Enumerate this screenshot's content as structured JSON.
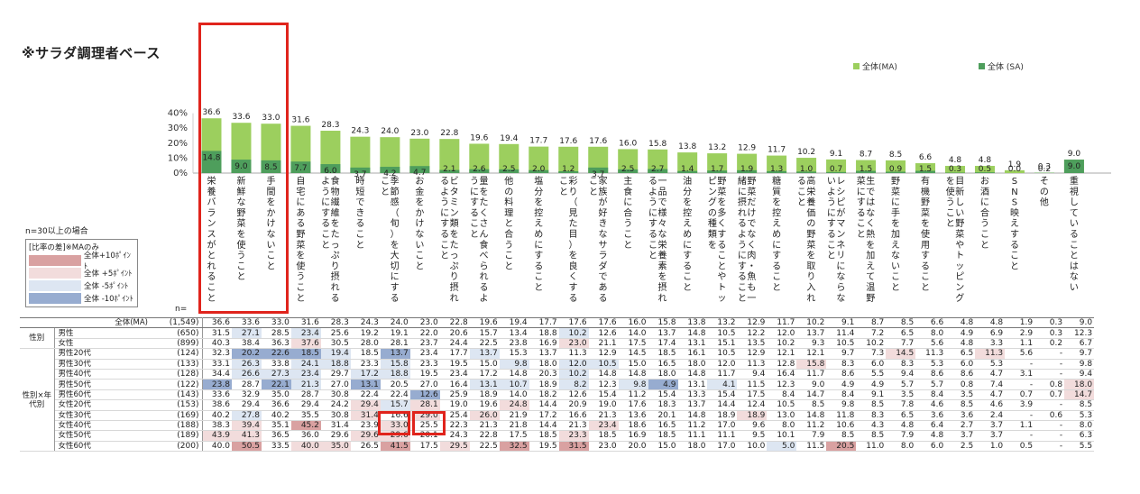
{
  "title": "※サラダ調理者ベース",
  "note": "n=30以上の場合",
  "diff_legend": {
    "title": "[比率の差]※MAのみ",
    "items": [
      {
        "label": "全体+10ﾎﾟｲﾝﾄ",
        "color": "#d9a1a1"
      },
      {
        "label": "全体 +5ﾎﾟｲﾝﾄ",
        "color": "#f2dcdc"
      },
      {
        "label": "全体 -5ﾎﾟｲﾝﾄ",
        "color": "#dde6f2"
      },
      {
        "label": "全体 -10ﾎﾟｲﾝﾄ",
        "color": "#97acd0"
      }
    ]
  },
  "n_label": "n=",
  "chart_data": {
    "type": "bar",
    "ylim": [
      0,
      40
    ],
    "yticks": [
      "0%",
      "10%",
      "20%",
      "30%",
      "40%"
    ],
    "series": [
      {
        "name": "全体(MA)",
        "color": "#9ccf5e",
        "values": [
          36.6,
          33.6,
          33.0,
          31.6,
          28.3,
          24.3,
          24.0,
          23.0,
          22.8,
          19.6,
          19.4,
          17.7,
          17.6,
          17.6,
          16.0,
          15.8,
          13.8,
          13.2,
          12.9,
          11.7,
          10.2,
          9.1,
          8.7,
          8.5,
          6.6,
          4.8,
          4.8,
          1.9,
          0.3,
          9.0
        ]
      },
      {
        "name": "全体 (SA)",
        "color": "#4e9e5c",
        "values": [
          14.8,
          9.0,
          8.5,
          7.7,
          6.0,
          3.7,
          4.2,
          4.7,
          2.1,
          2.6,
          2.5,
          2.0,
          1.2,
          3.7,
          2.5,
          2.7,
          1.4,
          1.7,
          1.9,
          1.3,
          1.0,
          0.7,
          1.5,
          0.9,
          1.5,
          0.3,
          0.5,
          0.0,
          0.2,
          9.0
        ]
      }
    ],
    "categories": [
      "栄養バランスがとれること",
      "新鮮な野菜を使うこと",
      "手間をかけないこと",
      "自宅にある野菜を使うこと",
      "食物繊維をたっぷり摂れるようにすること",
      "時短できること",
      "季節感（旬）を大切にすること",
      "お金をかけないこと",
      "ビタミン類をたっぷり摂れるようにすること",
      "量をたくさん食べられるようにすること",
      "他の料理と合うこと",
      "塩分を控えめにすること",
      "彩り（見た目）を良くすること",
      "家族が好きなサラダであること",
      "主食に合うこと",
      "一品で様々な栄養素を摂れるようにすること",
      "油分を控えめにすること",
      "野菜を多くすることやトッピングの種類を",
      "野菜だけでなく肉・魚も一緒に摂れるようにすること",
      "糖質を控えめにすること",
      "高栄養価の野菜を取り入れること",
      "レシピがマンネリにならないようにすること",
      "生ではなく熱を加えて温野菜にすること",
      "野菜に手を加えないこと",
      "有機野菜を使用すること",
      "目新しい野菜やトッピングを使うこと",
      "お酒に合うこと",
      "SNS映えすること",
      "その他",
      "重視していることはない"
    ]
  },
  "table": {
    "groups": [
      "性別",
      "性別×年代別"
    ],
    "rows": [
      {
        "label": "全体(MA)",
        "n": "(1,549)",
        "values": [
          "36.6",
          "33.6",
          "33.0",
          "31.6",
          "28.3",
          "24.3",
          "24.0",
          "23.0",
          "22.8",
          "19.6",
          "19.4",
          "17.7",
          "17.6",
          "17.6",
          "16.0",
          "15.8",
          "13.8",
          "13.2",
          "12.9",
          "11.7",
          "10.2",
          "9.1",
          "8.7",
          "8.5",
          "6.6",
          "4.8",
          "4.8",
          "1.9",
          "0.3",
          "9.0"
        ],
        "colors": []
      },
      {
        "label": "男性",
        "n": "(650)",
        "values": [
          "31.5",
          "27.1",
          "28.5",
          "23.4",
          "25.6",
          "19.2",
          "19.1",
          "22.0",
          "20.6",
          "15.7",
          "13.4",
          "18.8",
          "10.2",
          "12.6",
          "14.0",
          "13.7",
          "14.8",
          "10.5",
          "12.2",
          "12.0",
          "13.7",
          "11.4",
          "7.2",
          "6.5",
          "8.0",
          "4.9",
          "6.9",
          "2.9",
          "0.3",
          "12.3"
        ],
        "colors": [
          "",
          "c-m",
          "",
          "c-m",
          "",
          "",
          "",
          "",
          "",
          "",
          "",
          "",
          "c-m",
          "",
          "",
          "",
          "",
          "",
          "",
          "",
          "",
          "",
          "",
          "",
          "",
          "",
          "",
          "",
          "",
          ""
        ]
      },
      {
        "label": "女性",
        "n": "(899)",
        "values": [
          "40.3",
          "38.4",
          "36.3",
          "37.6",
          "30.5",
          "28.0",
          "28.1",
          "23.7",
          "24.4",
          "22.5",
          "23.8",
          "16.9",
          "23.0",
          "21.1",
          "17.5",
          "17.4",
          "13.1",
          "15.1",
          "13.5",
          "10.2",
          "9.3",
          "10.5",
          "10.2",
          "7.7",
          "5.6",
          "4.8",
          "3.3",
          "1.1",
          "0.2",
          "6.7"
        ],
        "colors": [
          "",
          "",
          "",
          "c-p",
          "",
          "",
          "",
          "",
          "",
          "",
          "",
          "",
          "c-p",
          "",
          "",
          "",
          "",
          "",
          "",
          "",
          "",
          "",
          "",
          "",
          "",
          "",
          "",
          "",
          "",
          ""
        ]
      },
      {
        "label": "男性20代",
        "n": "(124)",
        "values": [
          "32.3",
          "20.2",
          "22.6",
          "18.5",
          "19.4",
          "18.5",
          "13.7",
          "23.4",
          "17.7",
          "13.7",
          "15.3",
          "13.7",
          "11.3",
          "12.9",
          "14.5",
          "18.5",
          "16.1",
          "10.5",
          "12.9",
          "12.1",
          "12.1",
          "9.7",
          "7.3",
          "14.5",
          "11.3",
          "6.5",
          "11.3",
          "5.6",
          "-",
          "9.7"
        ],
        "colors": [
          "",
          "c-hm",
          "c-hm",
          "c-hm",
          "c-m",
          "",
          "c-hm",
          "",
          "",
          "c-m",
          "",
          "",
          "",
          "",
          "",
          "",
          "",
          "",
          "",
          "",
          "",
          "",
          "",
          "c-p",
          "",
          "",
          "c-p",
          "",
          "",
          ""
        ]
      },
      {
        "label": "男性30代",
        "n": "(133)",
        "values": [
          "33.1",
          "26.3",
          "33.8",
          "24.1",
          "18.8",
          "23.3",
          "15.8",
          "23.3",
          "19.5",
          "15.0",
          "9.8",
          "18.0",
          "12.0",
          "10.5",
          "15.0",
          "16.5",
          "18.0",
          "12.0",
          "11.3",
          "12.8",
          "15.8",
          "8.3",
          "6.0",
          "8.3",
          "5.3",
          "6.0",
          "5.3",
          "-",
          "-",
          "9.8"
        ],
        "colors": [
          "",
          "c-m",
          "",
          "c-m",
          "c-m",
          "",
          "c-m",
          "",
          "",
          "",
          "c-m",
          "",
          "c-m",
          "c-m",
          "",
          "",
          "",
          "",
          "",
          "",
          "c-p",
          "",
          "",
          "",
          "",
          "",
          "",
          "",
          "",
          ""
        ]
      },
      {
        "label": "男性40代",
        "n": "(128)",
        "values": [
          "34.4",
          "26.6",
          "27.3",
          "23.4",
          "29.7",
          "17.2",
          "18.8",
          "19.5",
          "23.4",
          "17.2",
          "14.8",
          "20.3",
          "10.2",
          "14.8",
          "14.8",
          "18.0",
          "14.8",
          "11.7",
          "9.4",
          "16.4",
          "11.7",
          "8.6",
          "5.5",
          "9.4",
          "8.6",
          "8.6",
          "4.7",
          "3.1",
          "-",
          "9.4"
        ],
        "colors": [
          "",
          "c-m",
          "c-m",
          "c-m",
          "",
          "c-m",
          "c-m",
          "",
          "",
          "",
          "",
          "",
          "c-m",
          "",
          "",
          "",
          "",
          "",
          "",
          "",
          "",
          "",
          "",
          "",
          "",
          "",
          "",
          "",
          "",
          ""
        ]
      },
      {
        "label": "男性50代",
        "n": "(122)",
        "values": [
          "23.8",
          "28.7",
          "22.1",
          "21.3",
          "27.0",
          "13.1",
          "20.5",
          "27.0",
          "16.4",
          "13.1",
          "10.7",
          "18.9",
          "8.2",
          "12.3",
          "9.8",
          "4.9",
          "13.1",
          "4.1",
          "11.5",
          "12.3",
          "9.0",
          "4.9",
          "4.9",
          "5.7",
          "5.7",
          "0.8",
          "7.4",
          "-",
          "0.8",
          "18.0"
        ],
        "colors": [
          "c-hm",
          "",
          "c-hm",
          "c-m",
          "",
          "c-hm",
          "",
          "",
          "",
          "c-m",
          "c-m",
          "",
          "c-m",
          "",
          "c-m",
          "c-hm",
          "",
          "c-m",
          "",
          "",
          "",
          "",
          "",
          "",
          "",
          "",
          "",
          "",
          "",
          "c-p"
        ]
      },
      {
        "label": "男性60代",
        "n": "(143)",
        "values": [
          "33.6",
          "32.9",
          "35.0",
          "28.7",
          "30.8",
          "22.4",
          "22.4",
          "12.6",
          "25.9",
          "18.9",
          "14.0",
          "18.2",
          "12.6",
          "15.4",
          "11.2",
          "15.4",
          "13.3",
          "15.4",
          "17.5",
          "8.4",
          "14.7",
          "8.4",
          "9.1",
          "3.5",
          "8.4",
          "3.5",
          "4.7",
          "0.7",
          "0.7",
          "14.7"
        ],
        "colors": [
          "",
          "",
          "",
          "",
          "",
          "",
          "",
          "c-hm",
          "",
          "",
          "",
          "",
          "",
          "",
          "",
          "",
          "",
          "",
          "",
          "",
          "",
          "",
          "",
          "",
          "",
          "",
          "",
          "",
          "",
          "c-p"
        ]
      },
      {
        "label": "女性20代",
        "n": "(153)",
        "values": [
          "38.6",
          "29.4",
          "36.6",
          "29.4",
          "24.2",
          "29.4",
          "15.7",
          "28.1",
          "19.0",
          "19.6",
          "24.8",
          "14.4",
          "20.9",
          "19.0",
          "17.6",
          "18.3",
          "13.7",
          "14.4",
          "12.4",
          "10.5",
          "8.5",
          "9.8",
          "8.5",
          "7.8",
          "4.6",
          "8.5",
          "4.6",
          "3.9",
          "-",
          "8.5"
        ],
        "colors": [
          "",
          "",
          "",
          "",
          "",
          "c-p",
          "c-m",
          "c-p",
          "",
          "",
          "c-p",
          "",
          "",
          "",
          "",
          "",
          "",
          "",
          "",
          "",
          "",
          "",
          "",
          "",
          "",
          "",
          "",
          "",
          "",
          ""
        ]
      },
      {
        "label": "女性30代",
        "n": "(169)",
        "values": [
          "40.2",
          "27.8",
          "40.2",
          "35.5",
          "30.8",
          "31.4",
          "16.6",
          "29.0",
          "25.4",
          "26.0",
          "21.9",
          "17.2",
          "16.6",
          "21.3",
          "13.6",
          "20.1",
          "14.8",
          "18.9",
          "18.9",
          "13.0",
          "14.8",
          "11.8",
          "8.3",
          "6.5",
          "3.6",
          "3.6",
          "2.4",
          "-",
          "0.6",
          "5.3"
        ],
        "colors": [
          "",
          "c-m",
          "",
          "",
          "",
          "c-p",
          "",
          "c-p",
          "",
          "c-p",
          "",
          "",
          "",
          "",
          "",
          "",
          "",
          "",
          "c-p",
          "",
          "",
          "",
          "",
          "",
          "",
          "",
          "",
          "",
          "",
          ""
        ]
      },
      {
        "label": "女性40代",
        "n": "(188)",
        "values": [
          "38.3",
          "39.4",
          "35.1",
          "45.2",
          "31.4",
          "23.9",
          "33.0",
          "25.5",
          "22.3",
          "21.3",
          "21.8",
          "14.4",
          "21.3",
          "23.4",
          "18.6",
          "16.5",
          "11.2",
          "17.0",
          "9.6",
          "8.0",
          "11.2",
          "10.6",
          "4.3",
          "4.8",
          "6.4",
          "2.7",
          "3.7",
          "1.1",
          "-",
          "8.0"
        ],
        "colors": [
          "",
          "c-p",
          "",
          "c-hp",
          "",
          "",
          "c-p",
          "",
          "",
          "",
          "",
          "",
          "",
          "c-p",
          "",
          "",
          "",
          "",
          "",
          "",
          "",
          "",
          "",
          "",
          "",
          "",
          "",
          "",
          "",
          ""
        ]
      },
      {
        "label": "女性50代",
        "n": "(189)",
        "values": [
          "43.9",
          "41.3",
          "36.5",
          "36.0",
          "29.6",
          "29.6",
          "29.6",
          "20.1",
          "24.3",
          "22.8",
          "17.5",
          "18.5",
          "23.3",
          "18.5",
          "16.9",
          "18.5",
          "11.1",
          "11.1",
          "9.5",
          "10.1",
          "7.9",
          "8.5",
          "8.5",
          "7.9",
          "4.8",
          "3.7",
          "3.7",
          "-",
          "-",
          "6.3"
        ],
        "colors": [
          "c-p",
          "c-p",
          "",
          "",
          "",
          "c-p",
          "c-p",
          "",
          "",
          "",
          "",
          "",
          "c-p",
          "",
          "",
          "",
          "",
          "",
          "",
          "",
          "",
          "",
          "",
          "",
          "",
          "",
          "",
          "",
          "",
          ""
        ]
      },
      {
        "label": "女性60代",
        "n": "(200)",
        "values": [
          "40.0",
          "50.5",
          "33.5",
          "40.0",
          "35.0",
          "26.5",
          "41.5",
          "17.5",
          "29.5",
          "22.5",
          "32.5",
          "19.5",
          "31.5",
          "23.0",
          "20.0",
          "15.0",
          "18.0",
          "17.0",
          "10.0",
          "5.0",
          "11.5",
          "20.5",
          "11.0",
          "8.0",
          "6.0",
          "2.5",
          "1.0",
          "0.5",
          "-",
          "5.5"
        ],
        "colors": [
          "",
          "c-hp",
          "",
          "c-p",
          "c-p",
          "",
          "c-hp",
          "",
          "c-p",
          "",
          "c-hp",
          "",
          "c-hp",
          "",
          "",
          "",
          "",
          "",
          "",
          "c-m",
          "",
          "c-hp",
          "",
          "",
          "",
          "",
          "",
          "",
          "",
          ""
        ]
      }
    ]
  }
}
